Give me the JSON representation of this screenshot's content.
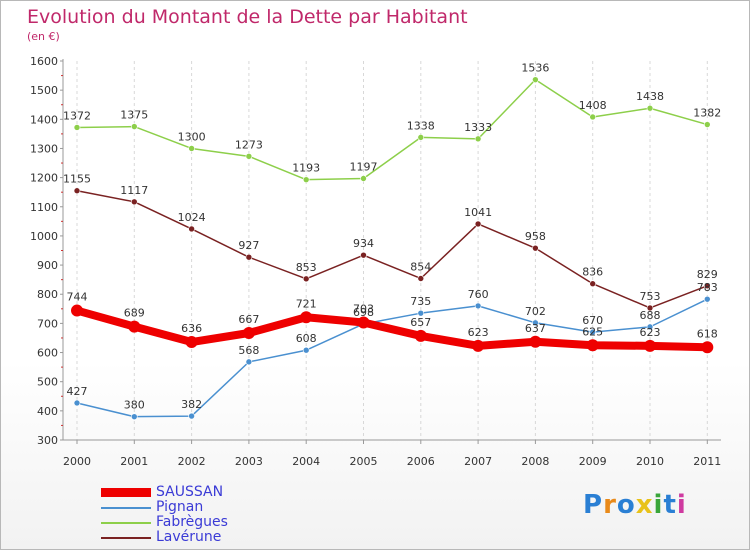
{
  "title": "Evolution du Montant de la Dette par Habitant",
  "unit": "(en €)",
  "logo": "Proxiti",
  "colors": {
    "title": "#c0286a",
    "legend_text": "#3b3bd6",
    "axis": "#999999",
    "grid": "#d8d8d8"
  },
  "chart_data": {
    "type": "line",
    "x": [
      "2000",
      "2001",
      "2002",
      "2003",
      "2004",
      "2005",
      "2006",
      "2007",
      "2008",
      "2009",
      "2010",
      "2011"
    ],
    "ylim": [
      300,
      1600
    ],
    "yticks": [
      300,
      400,
      500,
      600,
      700,
      800,
      900,
      1000,
      1100,
      1200,
      1300,
      1400,
      1500,
      1600
    ],
    "grid": "vertical dashed",
    "legend_position": "bottom-left",
    "series": [
      {
        "name": "Fabrègues",
        "color": "#8dcf4a",
        "values": [
          1372,
          1375,
          1300,
          1273,
          1193,
          1197,
          1338,
          1333,
          1536,
          1408,
          1438,
          1382
        ]
      },
      {
        "name": "Lavérune",
        "color": "#7a2222",
        "values": [
          1155,
          1117,
          1024,
          927,
          853,
          934,
          854,
          1041,
          958,
          836,
          753,
          829
        ]
      },
      {
        "name": "Pignan",
        "color": "#4a90d0",
        "values": [
          427,
          380,
          382,
          568,
          608,
          698,
          735,
          760,
          702,
          670,
          688,
          783
        ]
      },
      {
        "name": "SAUSSAN",
        "color": "#ee0000",
        "values": [
          744,
          689,
          636,
          667,
          721,
          703,
          657,
          623,
          637,
          625,
          623,
          618
        ]
      }
    ],
    "data_labels": [
      [
        "1372",
        "1375",
        "1300",
        "1273",
        "1193",
        "1197",
        "1338",
        "1333",
        "1536",
        "1408",
        "1438",
        "1382"
      ],
      [
        "1155",
        "1117",
        "1024",
        "927",
        "853",
        "934",
        "854",
        "1041",
        "958",
        "836",
        "753",
        "829"
      ],
      [
        "427",
        "380",
        "382",
        "568",
        "608",
        "698",
        "735",
        "760",
        "702",
        "670",
        "688",
        "783"
      ],
      [
        "744",
        "689",
        "636",
        "667",
        "721",
        "703",
        "657",
        "623",
        "637",
        "625",
        "623",
        "618"
      ]
    ]
  },
  "legend": [
    {
      "label": "SAUSSAN",
      "color": "#ee0000"
    },
    {
      "label": "Pignan",
      "color": "#4a90d0"
    },
    {
      "label": "Fabrègues",
      "color": "#8dcf4a"
    },
    {
      "label": "Lavérune",
      "color": "#7a2222"
    }
  ]
}
